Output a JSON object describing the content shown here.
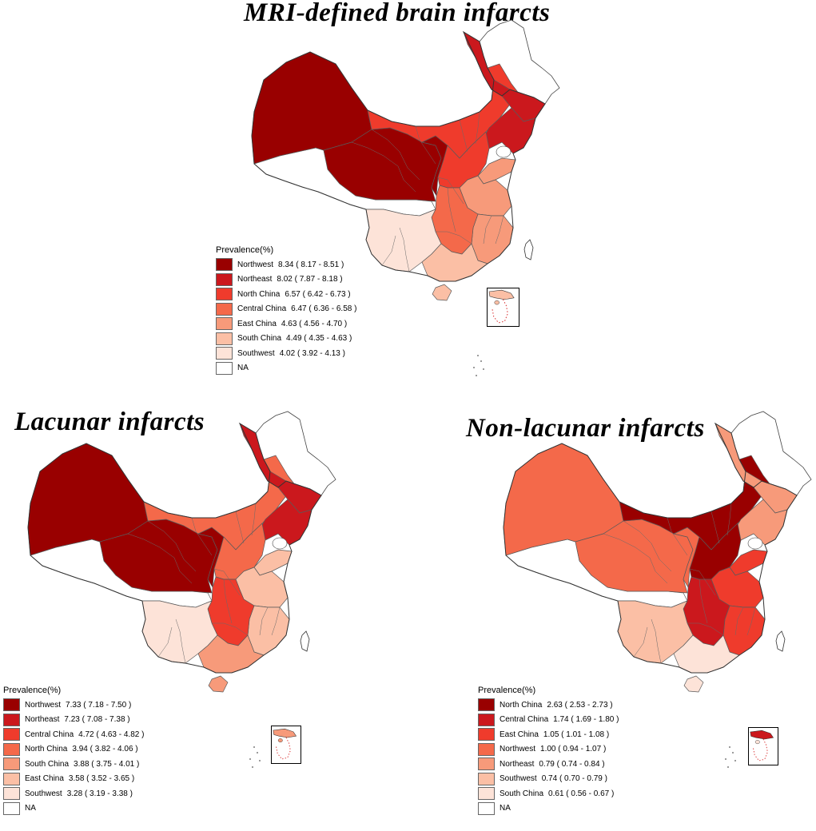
{
  "maps": [
    {
      "id": "mri",
      "title": "MRI-defined brain infarcts",
      "legend_title": "Prevalence(%)",
      "legend": [
        {
          "label": "Northwest",
          "value": "8.34 ( 8.17 - 8.51 )",
          "color": "#990000"
        },
        {
          "label": "Northeast",
          "value": "8.02 ( 7.87 - 8.18 )",
          "color": "#cb181d"
        },
        {
          "label": "North China",
          "value": "6.57 ( 6.42 - 6.73 )",
          "color": "#ef3b2c"
        },
        {
          "label": "Central China",
          "value": "6.47 ( 6.36 - 6.58 )",
          "color": "#f4694a"
        },
        {
          "label": "East China",
          "value": "4.63 ( 4.56 - 4.70 )",
          "color": "#f79a7a"
        },
        {
          "label": "South China",
          "value": "4.49 ( 4.35 - 4.63 )",
          "color": "#fbbfa5"
        },
        {
          "label": "Southwest",
          "value": "4.02 ( 3.92 - 4.13 )",
          "color": "#fde3d8"
        },
        {
          "label": "NA",
          "value": "",
          "color": "#ffffff"
        }
      ]
    },
    {
      "id": "lacunar",
      "title": "Lacunar infarcts",
      "legend_title": "Prevalence(%)",
      "legend": [
        {
          "label": "Northwest",
          "value": "7.33 ( 7.18 - 7.50 )",
          "color": "#990000"
        },
        {
          "label": "Northeast",
          "value": "7.23 ( 7.08 - 7.38 )",
          "color": "#cb181d"
        },
        {
          "label": "Central China",
          "value": "4.72 ( 4.63 - 4.82 )",
          "color": "#ef3b2c"
        },
        {
          "label": "North China",
          "value": "3.94 ( 3.82 - 4.06 )",
          "color": "#f4694a"
        },
        {
          "label": "South China",
          "value": "3.88 ( 3.75 - 4.01 )",
          "color": "#f79a7a"
        },
        {
          "label": "East China",
          "value": "3.58 ( 3.52 - 3.65 )",
          "color": "#fbbfa5"
        },
        {
          "label": "Southwest",
          "value": "3.28 ( 3.19 - 3.38 )",
          "color": "#fde3d8"
        },
        {
          "label": "NA",
          "value": "",
          "color": "#ffffff"
        }
      ]
    },
    {
      "id": "nonlacunar",
      "title": "Non-lacunar infarcts",
      "legend_title": "Prevalence(%)",
      "legend": [
        {
          "label": "North China",
          "value": "2.63 ( 2.53 - 2.73 )",
          "color": "#990000"
        },
        {
          "label": "Central China",
          "value": "1.74 ( 1.69 - 1.80 )",
          "color": "#cb181d"
        },
        {
          "label": "East China",
          "value": "1.05 ( 1.01 - 1.08 )",
          "color": "#ef3b2c"
        },
        {
          "label": "Northwest",
          "value": "1.00 ( 0.94 - 1.07 )",
          "color": "#f4694a"
        },
        {
          "label": "Northeast",
          "value": "0.79 ( 0.74 - 0.84 )",
          "color": "#f79a7a"
        },
        {
          "label": "Southwest",
          "value": "0.74 ( 0.70 - 0.79 )",
          "color": "#fbbfa5"
        },
        {
          "label": "South China",
          "value": "0.61 ( 0.56 - 0.67 )",
          "color": "#fde3d8"
        },
        {
          "label": "NA",
          "value": "",
          "color": "#ffffff"
        }
      ]
    }
  ]
}
